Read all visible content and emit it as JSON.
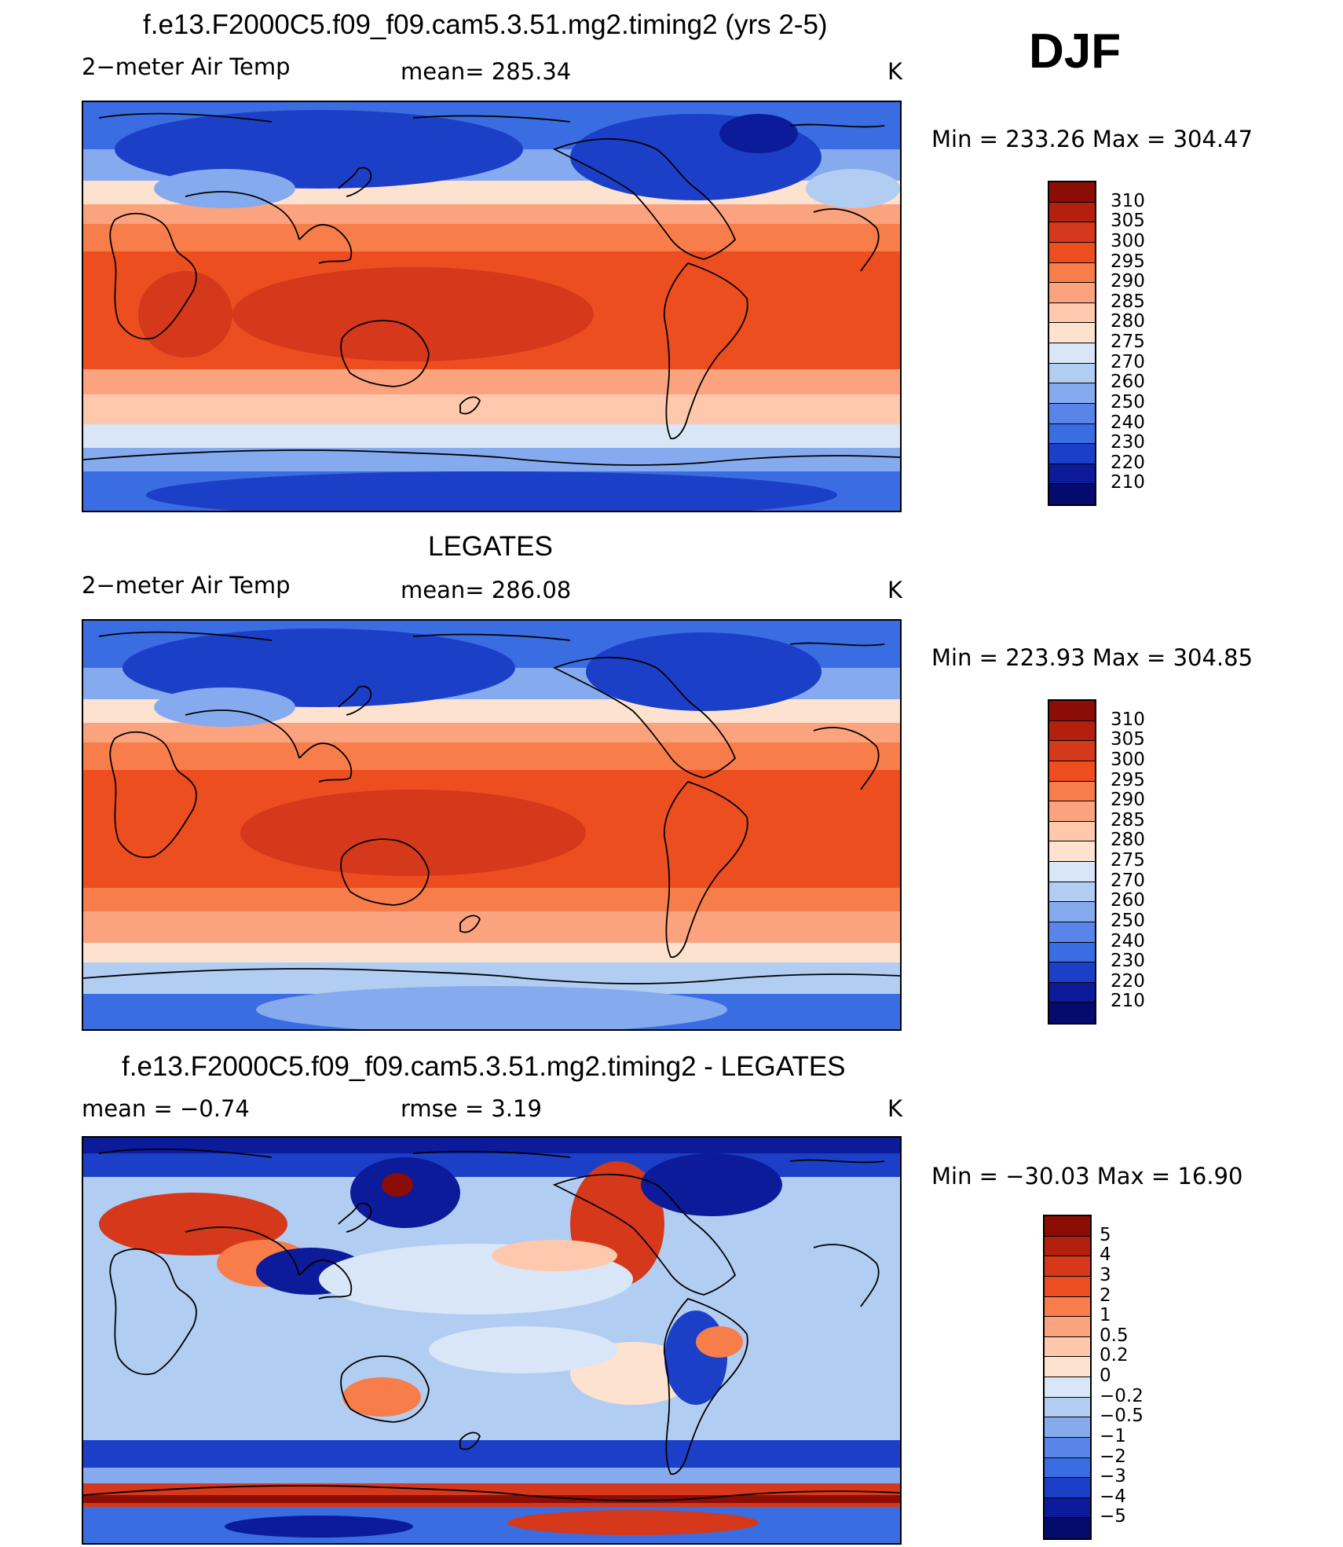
{
  "season": "DJF",
  "colors": {
    "ocean_warm": "#ec4e20",
    "ocean_hot": "#d5381a",
    "cold": "#3a6de2",
    "cold_deep": "#1c3fc8",
    "light": "#fde3cf",
    "coast": "#000000"
  },
  "panels": [
    {
      "title": "f.e13.F2000C5.f09_f09.cam5.3.51.mg2.timing2 (yrs 2-5)",
      "left_label": "2−meter Air Temp",
      "center_label": "mean=  285.34",
      "units": "K",
      "stats": "Min  =  233.26  Max  =  304.47",
      "colorbar": {
        "labels": [
          "310",
          "305",
          "300",
          "295",
          "290",
          "285",
          "280",
          "275",
          "270",
          "260",
          "250",
          "240",
          "230",
          "220",
          "210"
        ],
        "colors": [
          "#8c0c06",
          "#b4200e",
          "#d5381a",
          "#ec4e20",
          "#f77e4a",
          "#fba37f",
          "#fdc8ab",
          "#fde3cf",
          "#d8e6f7",
          "#b2cdf2",
          "#86aaee",
          "#5a85e8",
          "#3a6de2",
          "#1c3fc8",
          "#0b1b9a",
          "#050a6e"
        ]
      }
    },
    {
      "title": "LEGATES",
      "left_label": "2−meter Air Temp",
      "center_label": "mean=  286.08",
      "units": "K",
      "stats": "Min  =  223.93  Max  =  304.85",
      "colorbar": {
        "labels": [
          "310",
          "305",
          "300",
          "295",
          "290",
          "285",
          "280",
          "275",
          "270",
          "260",
          "250",
          "240",
          "230",
          "220",
          "210"
        ],
        "colors": [
          "#8c0c06",
          "#b4200e",
          "#d5381a",
          "#ec4e20",
          "#f77e4a",
          "#fba37f",
          "#fdc8ab",
          "#fde3cf",
          "#d8e6f7",
          "#b2cdf2",
          "#86aaee",
          "#5a85e8",
          "#3a6de2",
          "#1c3fc8",
          "#0b1b9a",
          "#050a6e"
        ]
      }
    },
    {
      "title": "f.e13.F2000C5.f09_f09.cam5.3.51.mg2.timing2 - LEGATES",
      "left_label": "mean  =     −0.74",
      "center_label": "rmse  =      3.19",
      "units": "K",
      "stats": "Min  =  −30.03  Max  =     16.90",
      "colorbar": {
        "labels": [
          "5",
          "4",
          "3",
          "2",
          "1",
          "0.5",
          "0.2",
          "0",
          "−0.2",
          "−0.5",
          "−1",
          "−2",
          "−3",
          "−4",
          "−5"
        ],
        "colors": [
          "#8c0c06",
          "#b4200e",
          "#d5381a",
          "#ec4e20",
          "#f77e4a",
          "#fba37f",
          "#fdc8ab",
          "#fde3cf",
          "#d8e6f7",
          "#b2cdf2",
          "#86aaee",
          "#5a85e8",
          "#3a6de2",
          "#1c3fc8",
          "#0b1b9a",
          "#050a6e"
        ]
      }
    }
  ]
}
